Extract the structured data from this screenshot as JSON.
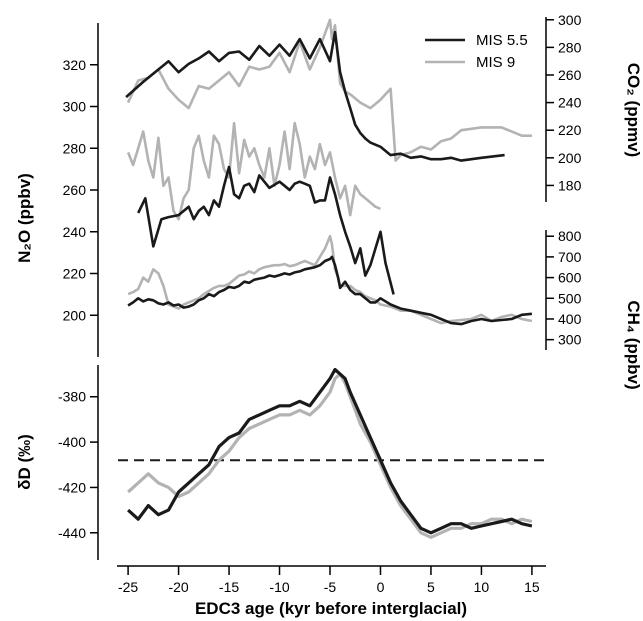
{
  "chart_data": {
    "type": "line",
    "x_axis": {
      "label": "EDC3 age (kyr before interglacial)",
      "range": [
        -26,
        16
      ],
      "ticks": [
        -25,
        -20,
        -15,
        -10,
        -5,
        0,
        5,
        10,
        15
      ]
    },
    "legend": {
      "placement": "top-right",
      "entries": [
        {
          "name": "MIS 5.5",
          "color": "#1a1a1a"
        },
        {
          "name": "MIS 9",
          "color": "#b3b3b3"
        }
      ]
    },
    "panels": [
      {
        "id": "co2",
        "ylabel": "CO₂ (ppmv)",
        "axis_side": "right",
        "ylim": [
          168,
          302
        ],
        "ticks": [
          180,
          200,
          220,
          240,
          260,
          280,
          300
        ],
        "series": [
          {
            "name": "MIS 5.5",
            "color": "#1a1a1a",
            "x": [
              -25.2,
              -23.5,
              -22,
              -21,
              -20,
              -19,
              -18,
              -17,
              -16,
              -15,
              -14,
              -13,
              -12,
              -11,
              -10,
              -9,
              -8,
              -7,
              -6,
              -5,
              -4.5,
              -4,
              -3.5,
              -3,
              -2.5,
              -2,
              -1.5,
              -1,
              0,
              1,
              2,
              3,
              4,
              5,
              6,
              7,
              8,
              10,
              12.3
            ],
            "y": [
              244,
              255,
              264,
              270,
              262,
              268,
              272,
              277,
              270,
              276,
              277,
              271,
              281,
              274,
              282,
              274,
              286,
              272,
              286,
              270,
              291,
              262,
              248,
              236,
              224,
              218,
              214,
              211,
              208,
              202,
              203,
              200,
              201,
              199,
              199,
              200,
              198,
              200,
              202
            ]
          },
          {
            "name": "MIS 9",
            "color": "#b3b3b3",
            "x": [
              -25,
              -24,
              -23,
              -22,
              -21,
              -20,
              -19,
              -18,
              -17,
              -16,
              -15,
              -14,
              -13,
              -12,
              -11,
              -10,
              -9,
              -8,
              -7,
              -6,
              -5,
              -4.8,
              -4.5,
              -4,
              -3.5,
              -3,
              -2,
              -1,
              0,
              0.5,
              1,
              1.5,
              2,
              3,
              3.5,
              4,
              5,
              6,
              7,
              8,
              10,
              12,
              14,
              15
            ],
            "y": [
              240,
              256,
              258,
              264,
              250,
              242,
              236,
              252,
              250,
              256,
              262,
              252,
              266,
              264,
              266,
              276,
              262,
              284,
              264,
              280,
              300,
              286,
              296,
              254,
              248,
              246,
              240,
              236,
              242,
              246,
              250,
              198,
              202,
              204,
              206,
              208,
              206,
              212,
              214,
              220,
              222,
              222,
              216,
              216
            ]
          }
        ]
      },
      {
        "id": "n2o",
        "ylabel": "N₂O (ppbv)",
        "axis_side": "left",
        "ylim": [
          180,
          340
        ],
        "ticks": [
          200,
          220,
          240,
          260,
          280,
          300,
          320
        ],
        "series": [
          {
            "name": "MIS 5.5",
            "color": "#1a1a1a",
            "x": [
              -24,
              -23.3,
              -22.5,
              -21.7,
              -21,
              -20,
              -19,
              -18.5,
              -18,
              -17.5,
              -17,
              -16.5,
              -16,
              -15.5,
              -15,
              -14.5,
              -14,
              -13.5,
              -13,
              -12.5,
              -12,
              -11,
              -10,
              -9.5,
              -9,
              -8.5,
              -8,
              -7.5,
              -7,
              -6.5,
              -6,
              -5.5,
              -5,
              -4.5,
              -4,
              -3.5,
              -3,
              -2.5,
              -2,
              -1.5,
              -1,
              0,
              0.5,
              1.3
            ],
            "y": [
              249,
              256,
              233,
              246,
              247,
              248,
              252,
              246,
              250,
              252,
              248,
              255,
              252,
              262,
              271,
              258,
              256,
              262,
              263,
              259,
              267,
              261,
              264,
              262,
              260,
              263,
              264,
              263,
              262,
              254,
              255,
              255,
              266,
              258,
              248,
              240,
              233,
              225,
              232,
              219,
              224,
              240,
              225,
              210
            ]
          },
          {
            "name": "MIS 9",
            "color": "#b3b3b3",
            "x": [
              -25,
              -24.5,
              -24,
              -23.5,
              -23,
              -22.5,
              -22,
              -21.5,
              -21,
              -20.5,
              -20,
              -19.5,
              -19,
              -18.5,
              -18,
              -17.5,
              -17,
              -16.5,
              -16,
              -15.5,
              -15,
              -14.5,
              -14,
              -13.5,
              -13,
              -12.5,
              -12,
              -11.5,
              -11,
              -10.5,
              -10,
              -9.5,
              -9,
              -8.5,
              -8,
              -7.5,
              -7,
              -6.5,
              -6,
              -5.5,
              -5,
              -4.5,
              -4,
              -3.5,
              -3,
              -2.5,
              -2,
              -1.5,
              -1,
              -0.5,
              0
            ],
            "y": [
              278,
              272,
              280,
              288,
              274,
              266,
              285,
              262,
              266,
              250,
              246,
              256,
              260,
              280,
              286,
              274,
              266,
              286,
              282,
              270,
              266,
              292,
              268,
              284,
              276,
              280,
              272,
              266,
              280,
              262,
              272,
              288,
              270,
              292,
              282,
              266,
              276,
              270,
              282,
              272,
              278,
              266,
              256,
              262,
              248,
              262,
              258,
              256,
              254,
              252,
              251
            ]
          }
        ]
      },
      {
        "id": "ch4",
        "ylabel": "CH₄ (ppbv)",
        "axis_side": "right",
        "ylim": [
          250,
          830
        ],
        "ticks": [
          300,
          400,
          500,
          600,
          700,
          800
        ],
        "series": [
          {
            "name": "MIS 5.5",
            "color": "#1a1a1a",
            "x": [
              -25,
              -24.5,
              -24,
              -23.5,
              -23,
              -22.5,
              -22,
              -21.5,
              -21,
              -20.5,
              -20,
              -19.5,
              -19,
              -18.5,
              -18,
              -17.5,
              -17,
              -16.5,
              -16,
              -15.5,
              -15,
              -14.5,
              -14,
              -13.5,
              -13,
              -12.5,
              -12,
              -11.5,
              -11,
              -10.5,
              -10,
              -9.5,
              -9,
              -8.5,
              -8,
              -7.5,
              -7,
              -6.5,
              -6,
              -5.5,
              -5,
              -4.8,
              -4.5,
              -4.2,
              -4,
              -3.5,
              -3,
              -2.5,
              -2,
              -1.5,
              -1,
              -0.5,
              0,
              1,
              2,
              3,
              4,
              5,
              6,
              7,
              8,
              9,
              10,
              11,
              12,
              13,
              14,
              15
            ],
            "y": [
              465,
              480,
              500,
              485,
              495,
              490,
              475,
              470,
              480,
              465,
              470,
              455,
              460,
              470,
              490,
              500,
              520,
              510,
              530,
              540,
              555,
              550,
              560,
              580,
              575,
              590,
              595,
              600,
              610,
              605,
              612,
              620,
              615,
              625,
              630,
              640,
              645,
              650,
              660,
              680,
              690,
              700,
              660,
              600,
              550,
              580,
              540,
              520,
              520,
              500,
              480,
              480,
              500,
              470,
              450,
              440,
              430,
              420,
              400,
              380,
              375,
              390,
              400,
              390,
              395,
              400,
              420,
              425
            ]
          },
          {
            "name": "MIS 9",
            "color": "#b3b3b3",
            "x": [
              -25,
              -24.5,
              -24,
              -23.5,
              -23,
              -22.5,
              -22,
              -21.5,
              -21,
              -20.5,
              -20,
              -19.5,
              -19,
              -18.5,
              -18,
              -17.5,
              -17,
              -16.5,
              -16,
              -15.5,
              -15,
              -14.5,
              -14,
              -13.5,
              -13,
              -12.5,
              -12,
              -11.5,
              -11,
              -10.5,
              -10,
              -9.5,
              -9,
              -8.5,
              -8,
              -7.5,
              -7,
              -6.5,
              -6,
              -5.5,
              -5,
              -4.8,
              -4.5,
              -4.2,
              -4,
              -3.5,
              -3,
              -2.5,
              -2,
              -1.5,
              -1,
              -0.5,
              0,
              1,
              2,
              3,
              4,
              5,
              6,
              7,
              8,
              9,
              10,
              11,
              12,
              13,
              14,
              15
            ],
            "y": [
              520,
              530,
              545,
              600,
              580,
              640,
              620,
              560,
              470,
              460,
              450,
              470,
              480,
              490,
              500,
              520,
              535,
              550,
              560,
              560,
              570,
              590,
              610,
              615,
              630,
              620,
              640,
              650,
              655,
              660,
              660,
              665,
              655,
              660,
              670,
              680,
              670,
              660,
              700,
              740,
              800,
              760,
              640,
              600,
              560,
              560,
              560,
              540,
              530,
              510,
              500,
              490,
              470,
              460,
              440,
              440,
              420,
              400,
              380,
              390,
              395,
              400,
              420,
              390,
              410,
              420,
              400,
              390
            ]
          }
        ]
      },
      {
        "id": "dD",
        "ylabel": "δD (‰)",
        "axis_side": "left",
        "ylim": [
          -452,
          -366
        ],
        "ticks": [
          -380,
          -400,
          -420,
          -440
        ],
        "reference_line": -408,
        "series": [
          {
            "name": "MIS 5.5",
            "color": "#1a1a1a",
            "x": [
              -25,
              -24,
              -23,
              -22,
              -21,
              -20,
              -19,
              -18,
              -17,
              -16,
              -15,
              -14,
              -13,
              -12,
              -11,
              -10,
              -9,
              -8,
              -7,
              -6,
              -5,
              -4.5,
              -4,
              -3.5,
              -3,
              -2,
              -1,
              0,
              1,
              2,
              3,
              4,
              5,
              6,
              7,
              8,
              9,
              10,
              11,
              12,
              13,
              14,
              15
            ],
            "y": [
              -430,
              -434,
              -428,
              -432,
              -430,
              -422,
              -418,
              -414,
              -410,
              -402,
              -398,
              -396,
              -390,
              -388,
              -386,
              -384,
              -384,
              -382,
              -384,
              -378,
              -372,
              -368,
              -370,
              -372,
              -378,
              -388,
              -398,
              -408,
              -418,
              -426,
              -432,
              -438,
              -440,
              -438,
              -436,
              -436,
              -438,
              -437,
              -436,
              -435,
              -434,
              -436,
              -437
            ]
          },
          {
            "name": "MIS 9",
            "color": "#b3b3b3",
            "x": [
              -25,
              -24,
              -23,
              -22,
              -21,
              -20,
              -19,
              -18,
              -17,
              -16,
              -15,
              -14,
              -13,
              -12,
              -11,
              -10,
              -9,
              -8,
              -7,
              -6,
              -5,
              -4.5,
              -4,
              -3.5,
              -3,
              -2,
              -1,
              0,
              1,
              2,
              3,
              4,
              5,
              6,
              7,
              8,
              9,
              10,
              11,
              12,
              13,
              14,
              15
            ],
            "y": [
              -422,
              -418,
              -414,
              -418,
              -420,
              -424,
              -422,
              -418,
              -414,
              -408,
              -404,
              -398,
              -394,
              -392,
              -390,
              -388,
              -388,
              -386,
              -388,
              -384,
              -378,
              -372,
              -370,
              -374,
              -380,
              -392,
              -400,
              -410,
              -420,
              -428,
              -434,
              -440,
              -442,
              -440,
              -438,
              -438,
              -436,
              -436,
              -434,
              -434,
              -436,
              -434,
              -435
            ]
          }
        ]
      }
    ]
  }
}
